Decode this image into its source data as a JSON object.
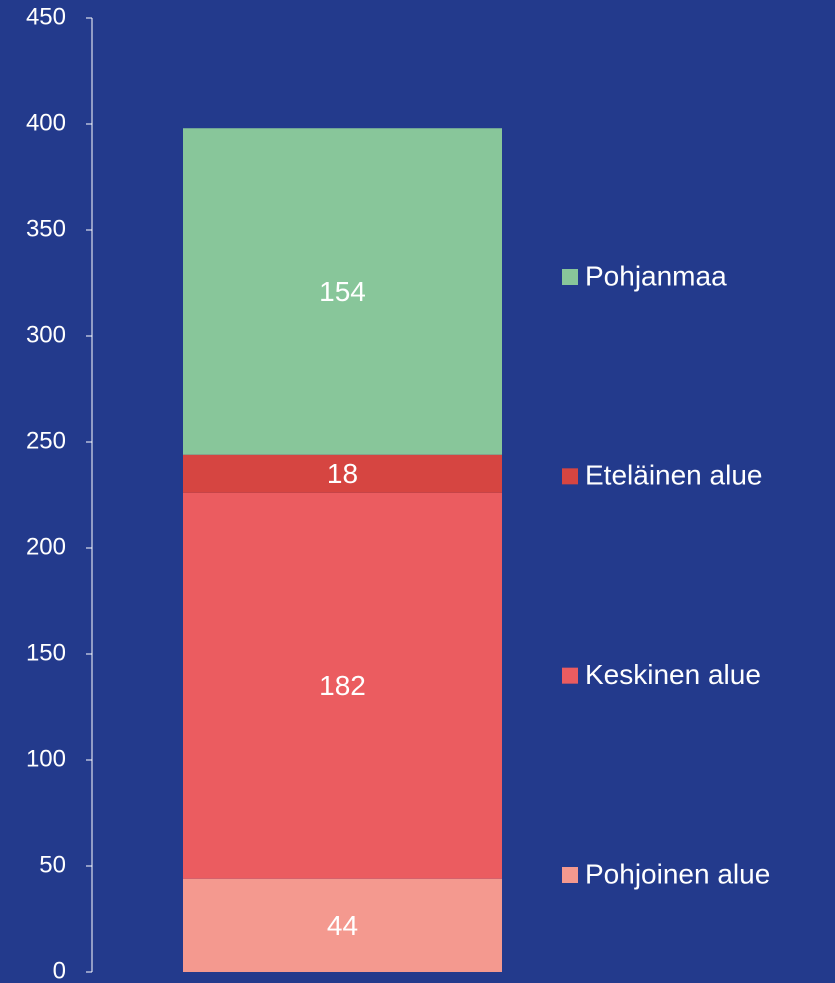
{
  "chart_data": {
    "type": "stacked-bar",
    "categories": [
      null
    ],
    "series": [
      {
        "name": "Pohjoinen alue",
        "color": "#f4998f",
        "values": [
          44
        ]
      },
      {
        "name": "Keskinen alue",
        "color": "#eb5c60",
        "values": [
          182
        ]
      },
      {
        "name": "Eteläinen alue",
        "color": "#d64541",
        "values": [
          18
        ]
      },
      {
        "name": "Pohjanmaa",
        "color": "#88c69a",
        "values": [
          154
        ]
      }
    ],
    "ylim": [
      0,
      450
    ],
    "yticks": [
      0,
      50,
      100,
      150,
      200,
      250,
      300,
      350,
      400,
      450
    ],
    "legend": "right"
  }
}
